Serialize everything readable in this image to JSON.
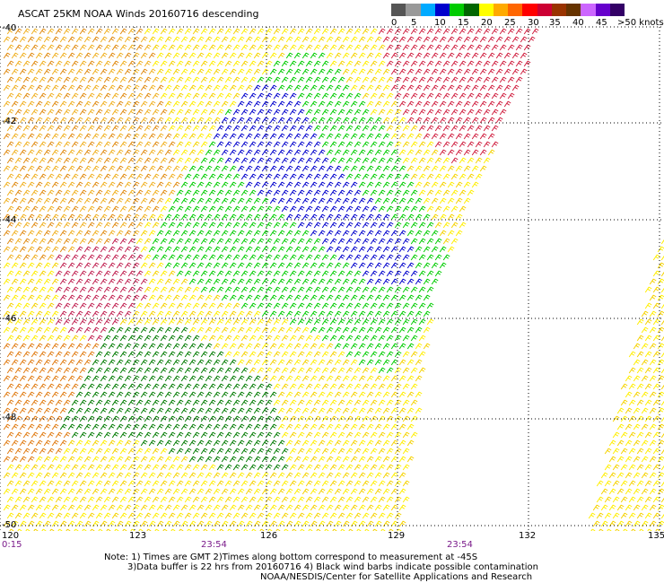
{
  "title": "ASCAT 25KM NOAA Winds 20160716 descending",
  "colorbar": {
    "labels": [
      "0",
      "5",
      "10",
      "15",
      "20",
      "25",
      "30",
      "35",
      "40",
      "45",
      ">50 knots"
    ],
    "colors": [
      "#555555",
      "#999999",
      "#00aaff",
      "#0000cc",
      "#00cc00",
      "#006600",
      "#ffff00",
      "#ffaa00",
      "#ff6600",
      "#ff0000",
      "#cc0033",
      "#993300",
      "#663300",
      "#cc66ff",
      "#6600cc",
      "#330066"
    ]
  },
  "axes": {
    "lat_labels": [
      "-40",
      "-42",
      "-44",
      "-46",
      "-48",
      "-50"
    ],
    "lon_labels": [
      "120",
      "123",
      "126",
      "129",
      "132",
      "135"
    ],
    "time_labels": [
      "0:15",
      "23:54",
      "23:54"
    ]
  },
  "notes": {
    "line1": "Note: 1) Times are GMT 2)Times along bottom correspond to measurement at -45S",
    "line2": "3)Data buffer is 22 hrs from 20160716 4) Black wind barbs indicate possible contamination",
    "line3": "NOAA/NESDIS/Center for Satellite Applications and Research"
  }
}
